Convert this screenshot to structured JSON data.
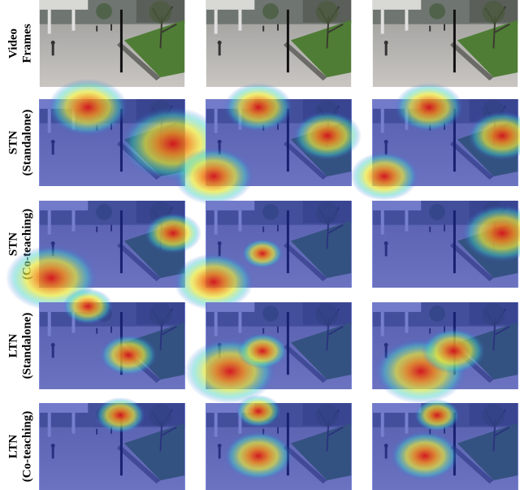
{
  "rows": [
    {
      "lines": [
        "Video",
        "Frames"
      ]
    },
    {
      "lines": [
        "STN",
        "(Standalone)"
      ]
    },
    {
      "lines": [
        "STN",
        "(Co-teaching)"
      ]
    },
    {
      "lines": [
        "LTN",
        "(Standalone)"
      ]
    },
    {
      "lines": [
        "LTN",
        "(Co-teaching)"
      ]
    }
  ]
}
